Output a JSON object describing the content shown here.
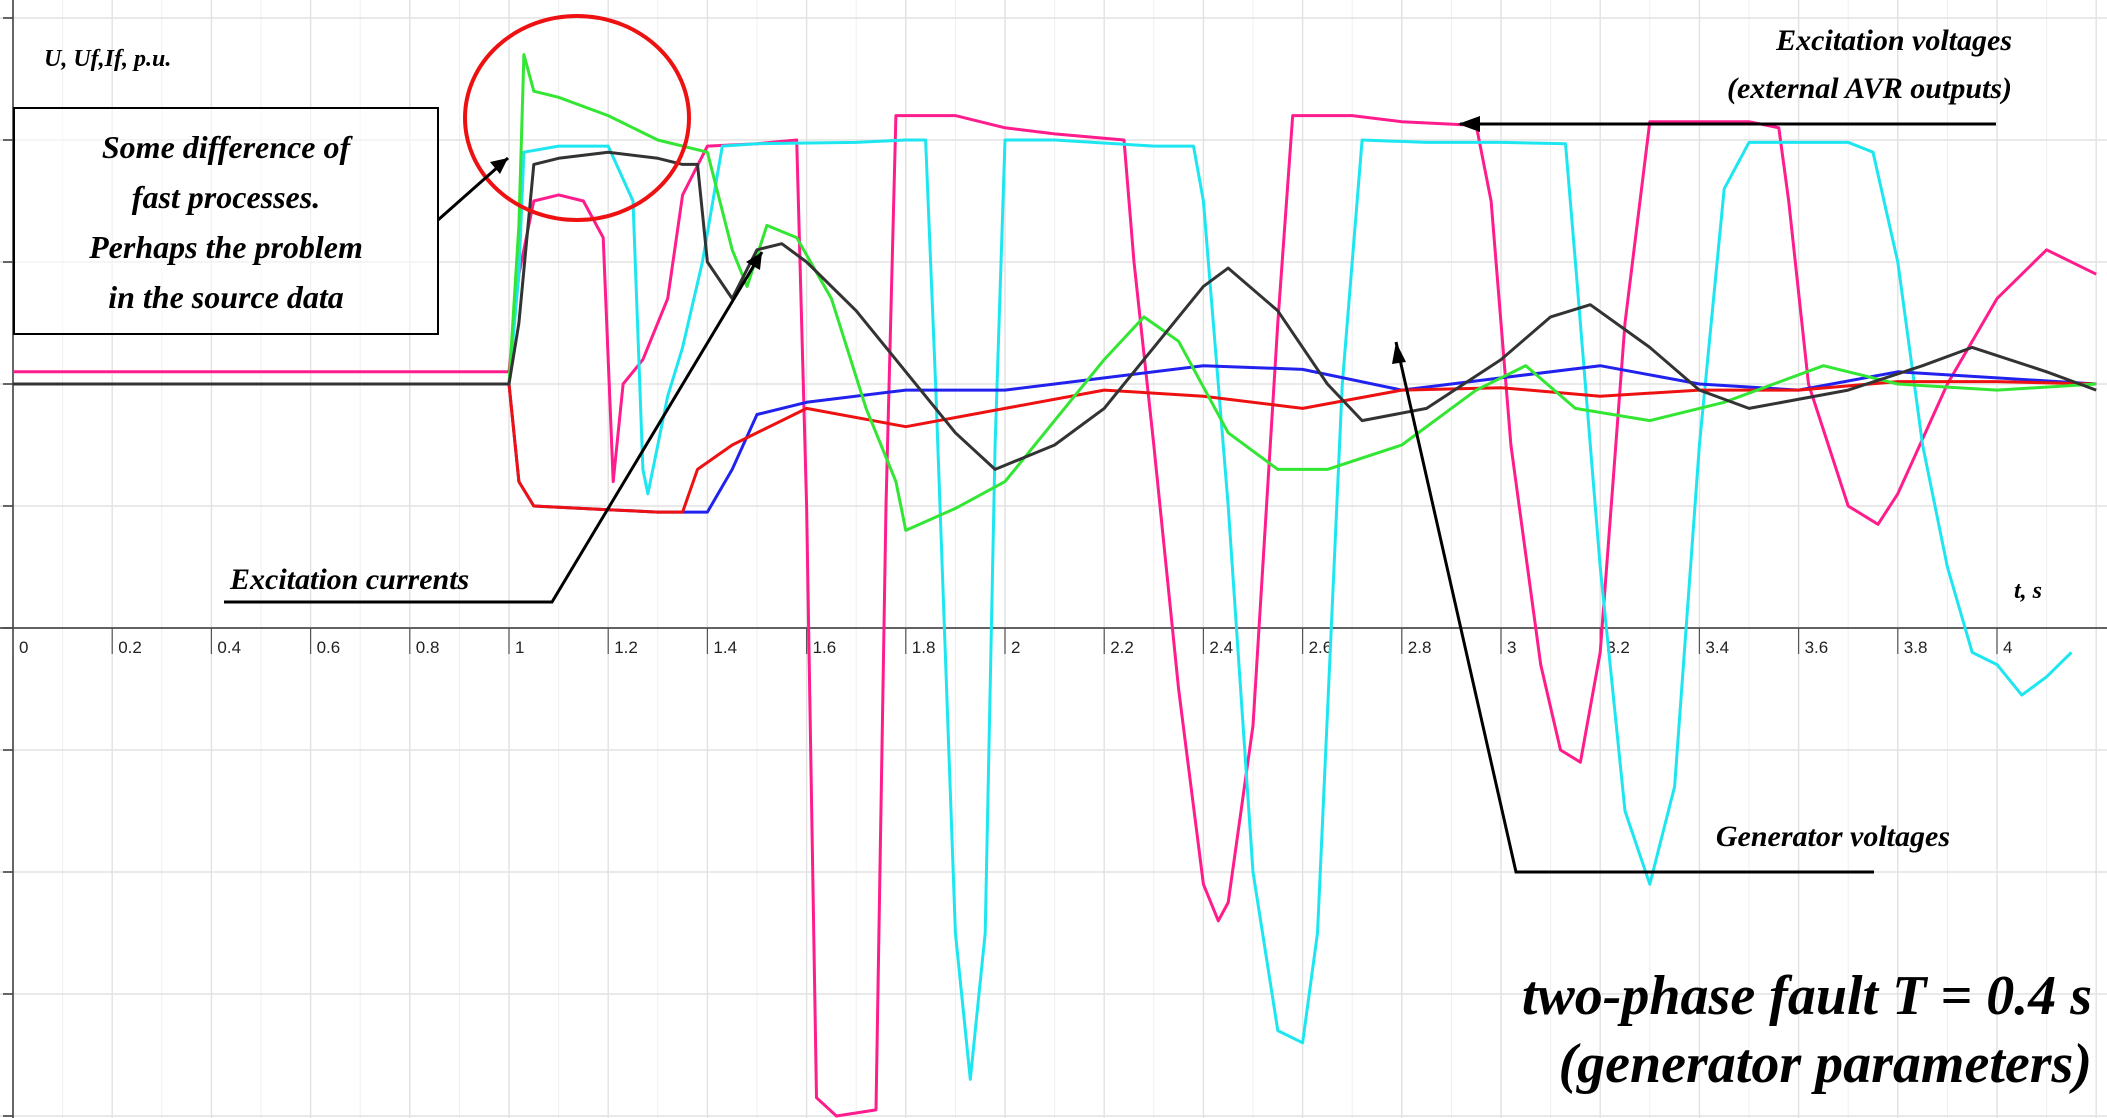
{
  "chart_data": {
    "type": "line",
    "y_axis_label": "U, Uf,If, p.u.",
    "x_axis_label": "t, s",
    "x_ticks": [
      "0",
      "0.2",
      "0.4",
      "0.6",
      "0.8",
      "1",
      "1.2",
      "1.4",
      "1.6",
      "1.8",
      "2",
      "2.2",
      "2.4",
      "2.6",
      "2.8",
      "3",
      "3.2",
      "3.4",
      "3.6",
      "3.8",
      "4"
    ],
    "xlim": [
      0,
      4.2
    ],
    "ylim": [
      -4,
      5
    ],
    "grid": true,
    "annotations": {
      "note_lines": [
        "Some difference of",
        "fast processes.",
        "Perhaps the problem",
        "in the source data"
      ],
      "excitation_voltages_lines": [
        "Excitation voltages",
        "(external AVR outputs)"
      ],
      "excitation_currents": "Excitation currents",
      "generator_voltages": "Generator voltages",
      "title_lines": [
        "two-phase fault  T = 0.4 s",
        "(generator parameters)"
      ]
    },
    "colors": {
      "excitation_voltage_1": "#ff1c8c",
      "excitation_voltage_2": "#1ee6f0",
      "generator_voltage_1": "#2222ee",
      "generator_voltage_2": "#ee1111",
      "excitation_current_1": "#33e633",
      "excitation_current_2": "#333333",
      "title": "#1a1aee",
      "circle": "#ee1111"
    },
    "series": [
      {
        "color_key": "excitation_voltage_1",
        "points": [
          [
            0,
            2.1
          ],
          [
            1.0,
            2.1
          ],
          [
            1.02,
            2.9
          ],
          [
            1.05,
            3.5
          ],
          [
            1.1,
            3.55
          ],
          [
            1.15,
            3.5
          ],
          [
            1.19,
            3.2
          ],
          [
            1.21,
            1.2
          ],
          [
            1.23,
            2.0
          ],
          [
            1.27,
            2.2
          ],
          [
            1.32,
            2.7
          ],
          [
            1.35,
            3.55
          ],
          [
            1.4,
            3.95
          ],
          [
            1.5,
            3.97
          ],
          [
            1.58,
            4.0
          ],
          [
            1.6,
            1.0
          ],
          [
            1.62,
            -3.85
          ],
          [
            1.66,
            -4.0
          ],
          [
            1.74,
            -3.95
          ],
          [
            1.76,
            1.0
          ],
          [
            1.78,
            4.2
          ],
          [
            1.9,
            4.2
          ],
          [
            2.0,
            4.1
          ],
          [
            2.1,
            4.05
          ],
          [
            2.24,
            4.0
          ],
          [
            2.26,
            3.0
          ],
          [
            2.3,
            1.5
          ],
          [
            2.35,
            -0.5
          ],
          [
            2.4,
            -2.1
          ],
          [
            2.43,
            -2.4
          ],
          [
            2.45,
            -2.25
          ],
          [
            2.5,
            -0.8
          ],
          [
            2.55,
            2.5
          ],
          [
            2.58,
            4.2
          ],
          [
            2.7,
            4.2
          ],
          [
            2.8,
            4.15
          ],
          [
            2.95,
            4.12
          ],
          [
            2.98,
            3.5
          ],
          [
            3.02,
            1.5
          ],
          [
            3.08,
            -0.3
          ],
          [
            3.12,
            -1.0
          ],
          [
            3.16,
            -1.1
          ],
          [
            3.2,
            -0.2
          ],
          [
            3.25,
            2.5
          ],
          [
            3.3,
            4.15
          ],
          [
            3.4,
            4.15
          ],
          [
            3.5,
            4.15
          ],
          [
            3.56,
            4.1
          ],
          [
            3.58,
            3.5
          ],
          [
            3.62,
            2.0
          ],
          [
            3.7,
            1.0
          ],
          [
            3.76,
            0.85
          ],
          [
            3.8,
            1.1
          ],
          [
            3.9,
            2.0
          ],
          [
            4.0,
            2.7
          ],
          [
            4.1,
            3.1
          ],
          [
            4.2,
            2.9
          ]
        ]
      },
      {
        "color_key": "excitation_voltage_2",
        "points": [
          [
            0,
            2.0
          ],
          [
            1.0,
            2.0
          ],
          [
            1.02,
            2.9
          ],
          [
            1.03,
            3.9
          ],
          [
            1.1,
            3.95
          ],
          [
            1.2,
            3.95
          ],
          [
            1.25,
            3.5
          ],
          [
            1.27,
            1.3
          ],
          [
            1.28,
            1.1
          ],
          [
            1.3,
            1.5
          ],
          [
            1.32,
            1.9
          ],
          [
            1.35,
            2.3
          ],
          [
            1.39,
            3.0
          ],
          [
            1.43,
            3.95
          ],
          [
            1.5,
            3.97
          ],
          [
            1.7,
            3.98
          ],
          [
            1.8,
            4.0
          ],
          [
            1.84,
            4.0
          ],
          [
            1.86,
            2.0
          ],
          [
            1.9,
            -2.5
          ],
          [
            1.93,
            -3.7
          ],
          [
            1.96,
            -2.5
          ],
          [
            1.98,
            1.5
          ],
          [
            2.0,
            4.0
          ],
          [
            2.1,
            4.0
          ],
          [
            2.3,
            3.95
          ],
          [
            2.38,
            3.95
          ],
          [
            2.4,
            3.5
          ],
          [
            2.45,
            1.0
          ],
          [
            2.5,
            -2.0
          ],
          [
            2.55,
            -3.3
          ],
          [
            2.6,
            -3.4
          ],
          [
            2.63,
            -2.5
          ],
          [
            2.68,
            2.0
          ],
          [
            2.72,
            4.0
          ],
          [
            2.85,
            3.98
          ],
          [
            3.0,
            3.98
          ],
          [
            3.13,
            3.97
          ],
          [
            3.15,
            3.0
          ],
          [
            3.2,
            0.5
          ],
          [
            3.25,
            -1.5
          ],
          [
            3.3,
            -2.1
          ],
          [
            3.35,
            -1.3
          ],
          [
            3.4,
            1.5
          ],
          [
            3.45,
            3.6
          ],
          [
            3.5,
            3.98
          ],
          [
            3.7,
            3.98
          ],
          [
            3.75,
            3.9
          ],
          [
            3.8,
            3.0
          ],
          [
            3.85,
            1.5
          ],
          [
            3.9,
            0.5
          ],
          [
            3.95,
            -0.2
          ],
          [
            4.0,
            -0.3
          ],
          [
            4.05,
            -0.55
          ],
          [
            4.1,
            -0.4
          ],
          [
            4.15,
            -0.2
          ]
        ]
      },
      {
        "color_key": "generator_voltage_1",
        "points": [
          [
            0,
            2.0
          ],
          [
            1.0,
            2.0
          ],
          [
            1.02,
            1.2
          ],
          [
            1.05,
            1.0
          ],
          [
            1.2,
            0.97
          ],
          [
            1.3,
            0.95
          ],
          [
            1.4,
            0.95
          ],
          [
            1.45,
            1.3
          ],
          [
            1.5,
            1.75
          ],
          [
            1.6,
            1.85
          ],
          [
            1.8,
            1.95
          ],
          [
            2.0,
            1.95
          ],
          [
            2.2,
            2.05
          ],
          [
            2.4,
            2.15
          ],
          [
            2.6,
            2.12
          ],
          [
            2.8,
            1.95
          ],
          [
            3.0,
            2.05
          ],
          [
            3.2,
            2.15
          ],
          [
            3.4,
            2.0
          ],
          [
            3.6,
            1.95
          ],
          [
            3.8,
            2.1
          ],
          [
            4.0,
            2.05
          ],
          [
            4.2,
            2.0
          ]
        ]
      },
      {
        "color_key": "generator_voltage_2",
        "points": [
          [
            0,
            2.0
          ],
          [
            1.0,
            2.0
          ],
          [
            1.02,
            1.2
          ],
          [
            1.05,
            1.0
          ],
          [
            1.2,
            0.97
          ],
          [
            1.3,
            0.95
          ],
          [
            1.35,
            0.95
          ],
          [
            1.38,
            1.3
          ],
          [
            1.45,
            1.5
          ],
          [
            1.55,
            1.7
          ],
          [
            1.6,
            1.8
          ],
          [
            1.8,
            1.65
          ],
          [
            2.0,
            1.8
          ],
          [
            2.2,
            1.95
          ],
          [
            2.4,
            1.9
          ],
          [
            2.6,
            1.8
          ],
          [
            2.8,
            1.95
          ],
          [
            3.0,
            1.97
          ],
          [
            3.2,
            1.9
          ],
          [
            3.4,
            1.95
          ],
          [
            3.6,
            1.95
          ],
          [
            3.8,
            2.02
          ],
          [
            4.0,
            2.02
          ],
          [
            4.2,
            2.0
          ]
        ]
      },
      {
        "color_key": "excitation_current_1",
        "points": [
          [
            0,
            2.0
          ],
          [
            1.0,
            2.0
          ],
          [
            1.02,
            3.3
          ],
          [
            1.03,
            4.7
          ],
          [
            1.05,
            4.4
          ],
          [
            1.1,
            4.35
          ],
          [
            1.2,
            4.2
          ],
          [
            1.3,
            4.0
          ],
          [
            1.4,
            3.9
          ],
          [
            1.45,
            3.1
          ],
          [
            1.48,
            2.8
          ],
          [
            1.52,
            3.3
          ],
          [
            1.58,
            3.2
          ],
          [
            1.65,
            2.7
          ],
          [
            1.72,
            1.8
          ],
          [
            1.78,
            1.2
          ],
          [
            1.8,
            0.8
          ],
          [
            1.9,
            0.98
          ],
          [
            2.0,
            1.2
          ],
          [
            2.1,
            1.7
          ],
          [
            2.2,
            2.2
          ],
          [
            2.28,
            2.55
          ],
          [
            2.35,
            2.35
          ],
          [
            2.45,
            1.6
          ],
          [
            2.55,
            1.3
          ],
          [
            2.65,
            1.3
          ],
          [
            2.8,
            1.5
          ],
          [
            2.95,
            1.95
          ],
          [
            3.05,
            2.15
          ],
          [
            3.15,
            1.8
          ],
          [
            3.3,
            1.7
          ],
          [
            3.45,
            1.85
          ],
          [
            3.65,
            2.15
          ],
          [
            3.8,
            2.0
          ],
          [
            4.0,
            1.95
          ],
          [
            4.2,
            2.0
          ]
        ]
      },
      {
        "color_key": "excitation_current_2",
        "points": [
          [
            0,
            2.0
          ],
          [
            1.0,
            2.0
          ],
          [
            1.02,
            2.5
          ],
          [
            1.05,
            3.8
          ],
          [
            1.1,
            3.85
          ],
          [
            1.2,
            3.9
          ],
          [
            1.3,
            3.85
          ],
          [
            1.35,
            3.8
          ],
          [
            1.38,
            3.8
          ],
          [
            1.4,
            3.0
          ],
          [
            1.45,
            2.7
          ],
          [
            1.5,
            3.1
          ],
          [
            1.55,
            3.15
          ],
          [
            1.6,
            3.0
          ],
          [
            1.7,
            2.6
          ],
          [
            1.8,
            2.1
          ],
          [
            1.9,
            1.6
          ],
          [
            1.98,
            1.3
          ],
          [
            2.1,
            1.5
          ],
          [
            2.2,
            1.8
          ],
          [
            2.3,
            2.3
          ],
          [
            2.4,
            2.8
          ],
          [
            2.45,
            2.95
          ],
          [
            2.55,
            2.6
          ],
          [
            2.65,
            2.0
          ],
          [
            2.72,
            1.7
          ],
          [
            2.85,
            1.8
          ],
          [
            3.0,
            2.2
          ],
          [
            3.1,
            2.55
          ],
          [
            3.18,
            2.65
          ],
          [
            3.3,
            2.3
          ],
          [
            3.4,
            1.95
          ],
          [
            3.5,
            1.8
          ],
          [
            3.7,
            1.95
          ],
          [
            3.85,
            2.15
          ],
          [
            3.95,
            2.3
          ],
          [
            4.1,
            2.1
          ],
          [
            4.2,
            1.95
          ]
        ]
      }
    ]
  }
}
